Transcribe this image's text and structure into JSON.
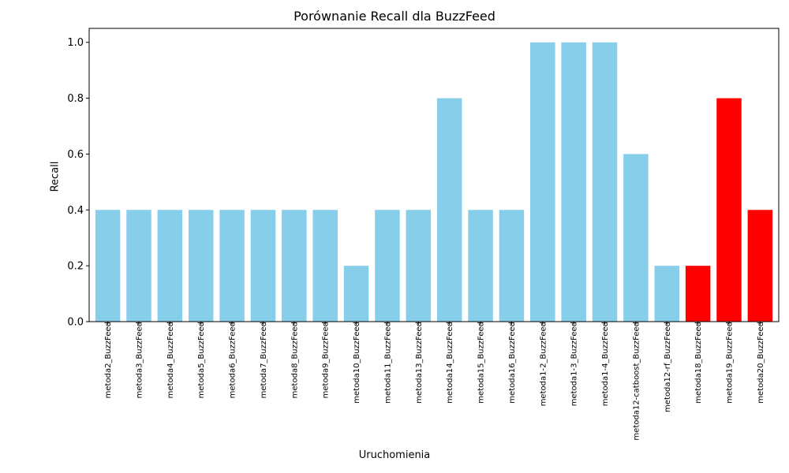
{
  "chart_data": {
    "type": "bar",
    "title": "Porównanie Recall dla BuzzFeed",
    "xlabel": "Uruchomienia",
    "ylabel": "Recall",
    "ylim": [
      0,
      1.05
    ],
    "yticks": [
      "0.0",
      "0.2",
      "0.4",
      "0.6",
      "0.8",
      "1.0"
    ],
    "grid": false,
    "categories": [
      "metoda2_BuzzFeed",
      "metoda3_BuzzFeed",
      "metoda4_BuzzFeed",
      "metoda5_BuzzFeed",
      "metoda6_BuzzFeed",
      "metoda7_BuzzFeed",
      "metoda8_BuzzFeed",
      "metoda9_BuzzFeed",
      "metoda10_BuzzFeed",
      "metoda11_BuzzFeed",
      "metoda13_BuzzFeed",
      "metoda14_BuzzFeed",
      "metoda15_BuzzFeed",
      "metoda16_BuzzFeed",
      "metoda1-2_BuzzFeed",
      "metoda1-3_BuzzFeed",
      "metoda1-4_BuzzFeed",
      "metoda12-catboost_BuzzFeed",
      "metoda12-rf_BuzzFeed",
      "metoda18_BuzzFeed",
      "metoda19_BuzzFeed",
      "metoda20_BuzzFeed"
    ],
    "values": [
      0.4,
      0.4,
      0.4,
      0.4,
      0.4,
      0.4,
      0.4,
      0.4,
      0.2,
      0.4,
      0.4,
      0.8,
      0.4,
      0.4,
      1.0,
      1.0,
      1.0,
      0.6,
      0.2,
      0.2,
      0.8,
      0.4
    ],
    "colors": [
      "#87ceeb",
      "#87ceeb",
      "#87ceeb",
      "#87ceeb",
      "#87ceeb",
      "#87ceeb",
      "#87ceeb",
      "#87ceeb",
      "#87ceeb",
      "#87ceeb",
      "#87ceeb",
      "#87ceeb",
      "#87ceeb",
      "#87ceeb",
      "#87ceeb",
      "#87ceeb",
      "#87ceeb",
      "#87ceeb",
      "#87ceeb",
      "#ff0000",
      "#ff0000",
      "#ff0000"
    ]
  }
}
